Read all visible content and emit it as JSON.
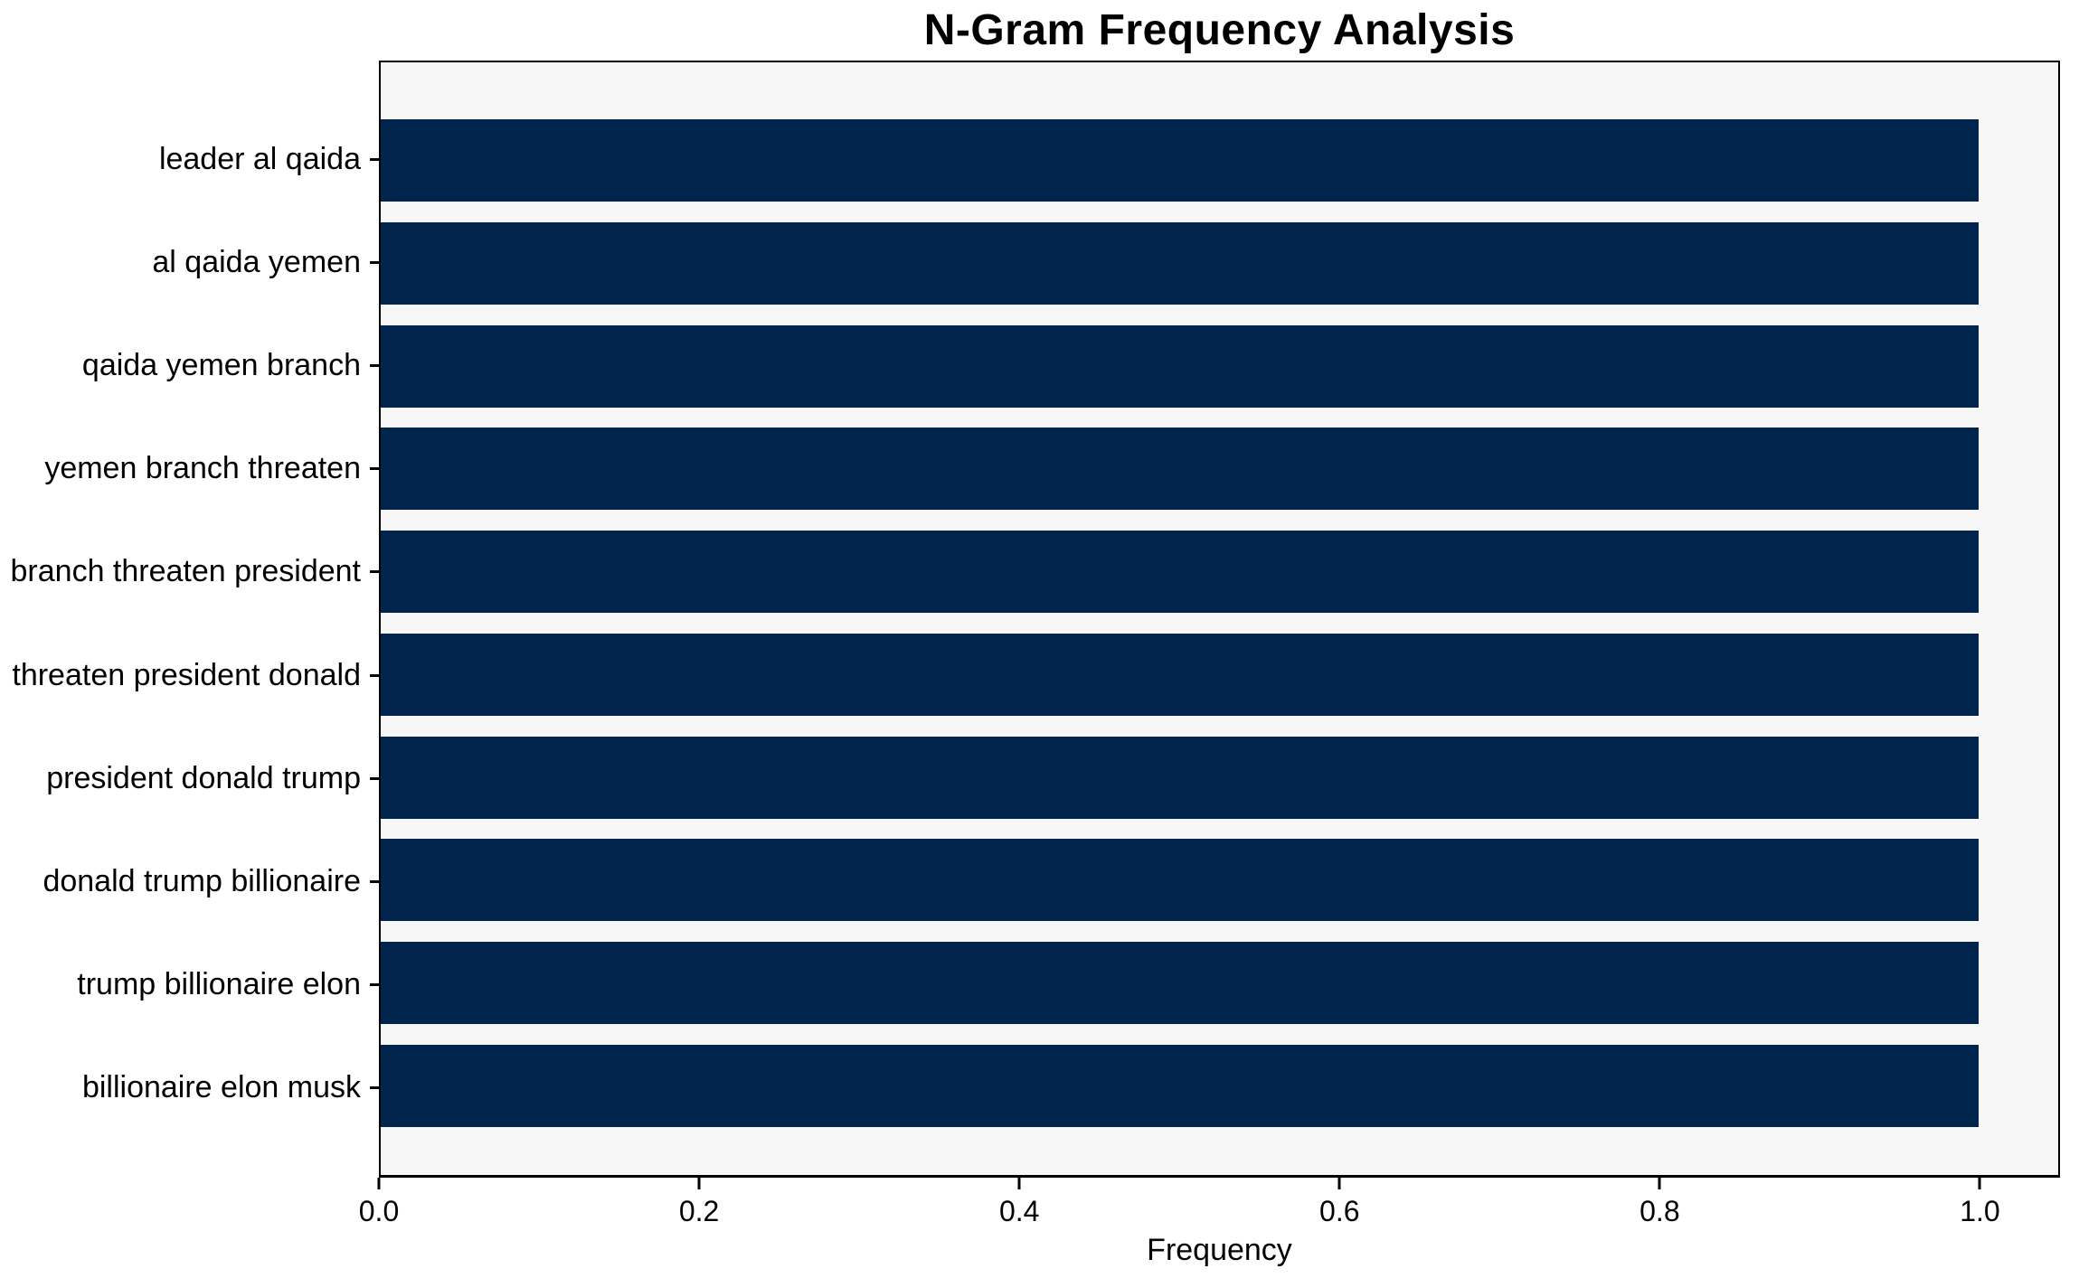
{
  "chart_data": {
    "type": "bar",
    "orientation": "horizontal",
    "title": "N-Gram Frequency Analysis",
    "xlabel": "Frequency",
    "ylabel": "",
    "categories": [
      "leader al qaida",
      "al qaida yemen",
      "qaida yemen branch",
      "yemen branch threaten",
      "branch threaten president",
      "threaten president donald",
      "president donald trump",
      "donald trump billionaire",
      "trump billionaire elon",
      "billionaire elon musk"
    ],
    "values": [
      1.0,
      1.0,
      1.0,
      1.0,
      1.0,
      1.0,
      1.0,
      1.0,
      1.0,
      1.0
    ],
    "xticks": [
      0.0,
      0.2,
      0.4,
      0.6,
      0.8,
      1.0
    ],
    "xtick_labels": [
      "0.0",
      "0.2",
      "0.4",
      "0.6",
      "0.8",
      "1.0"
    ],
    "xlim": [
      0,
      1.05
    ],
    "grid": false,
    "legend": null,
    "bar_color": "#02254d",
    "plot_bg_color": "#f7f7f7",
    "figure_bg_color": "#ffffff",
    "axis_color": "#000000",
    "text_color": "#000000"
  }
}
